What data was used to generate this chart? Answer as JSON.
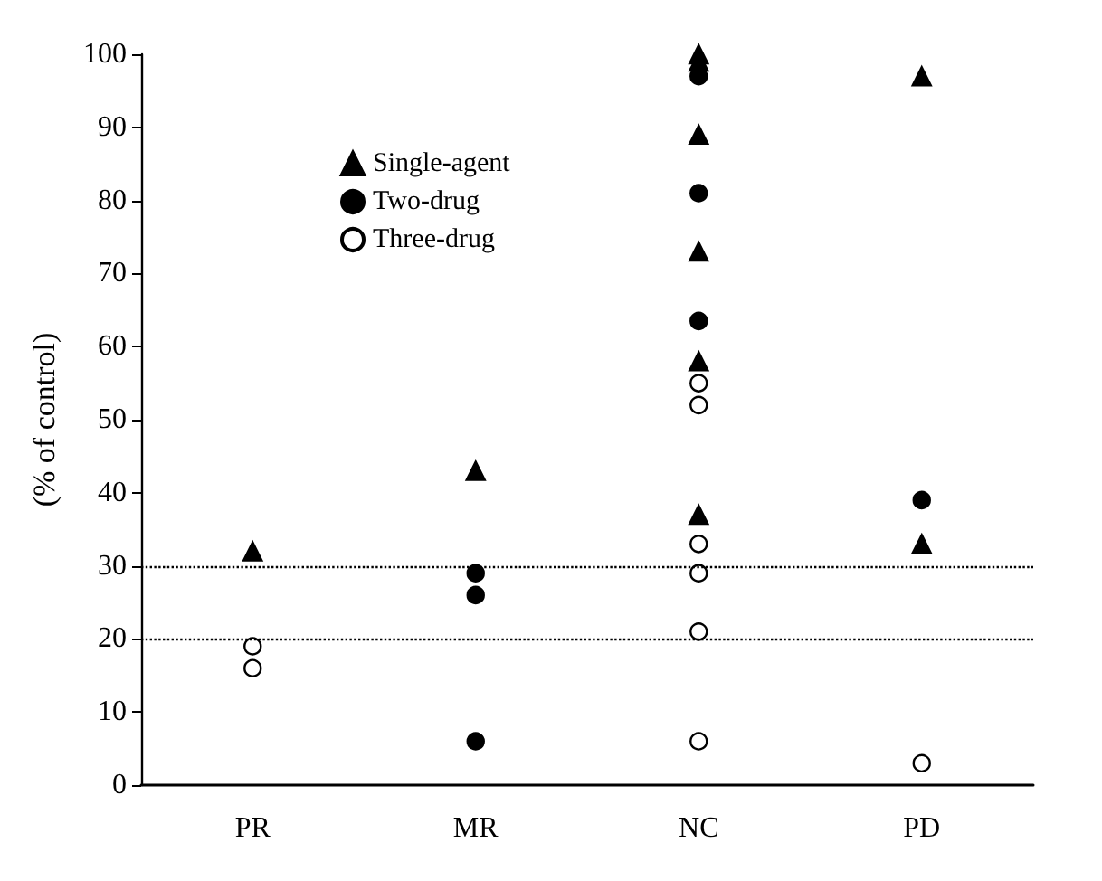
{
  "chart_data": {
    "type": "scatter",
    "categories": [
      "PR",
      "MR",
      "NC",
      "PD"
    ],
    "ylabel": "(% of control)",
    "ylim": [
      0,
      100
    ],
    "yticks": [
      0,
      10,
      20,
      30,
      40,
      50,
      60,
      70,
      80,
      90,
      100
    ],
    "grid": false,
    "legend": "top left",
    "series": [
      {
        "name": "Single-agent",
        "color": "#000000",
        "marker": "triangle",
        "x": [
          "PR",
          "MR",
          "NC",
          "NC",
          "NC",
          "NC",
          "NC",
          "NC",
          "PD",
          "PD"
        ],
        "values": [
          32,
          43,
          100,
          99,
          89,
          73,
          58,
          37,
          97,
          33
        ]
      },
      {
        "name": "Two-drug",
        "color": "#000000",
        "marker": "circle",
        "x": [
          "MR",
          "MR",
          "MR",
          "NC",
          "NC",
          "NC",
          "PD"
        ],
        "values": [
          29,
          26,
          6,
          97,
          81,
          63.5,
          39
        ]
      },
      {
        "name": "Three-drug",
        "color": "#ffffff",
        "marker": "circle",
        "x": [
          "PR",
          "PR",
          "NC",
          "NC",
          "NC",
          "NC",
          "NC",
          "NC",
          "PD"
        ],
        "values": [
          19,
          16,
          55,
          52,
          33,
          29,
          21,
          6,
          3
        ]
      }
    ],
    "ref_lines": [
      {
        "axis": "y",
        "value": 30,
        "line_style": "dotted"
      },
      {
        "axis": "y",
        "value": 20,
        "line_style": "dotted"
      }
    ]
  }
}
